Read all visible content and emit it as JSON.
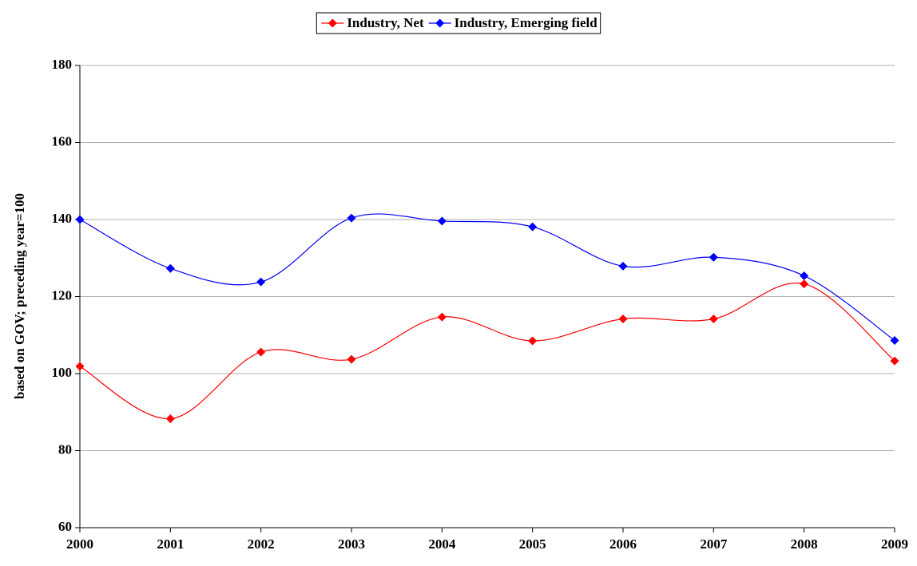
{
  "chart_data": {
    "type": "line",
    "y_label": "based on GOV; preceding year=100",
    "x": [
      2000,
      2001,
      2002,
      2003,
      2004,
      2005,
      2006,
      2007,
      2008,
      2009
    ],
    "xlim": [
      2000,
      2009
    ],
    "xticks": [
      2000,
      2001,
      2002,
      2003,
      2004,
      2005,
      2006,
      2007,
      2008,
      2009
    ],
    "ylim": [
      60,
      180
    ],
    "yticks": [
      60,
      80,
      100,
      120,
      140,
      160,
      180
    ],
    "grid": true,
    "legend": "top",
    "series": [
      {
        "name": "Industry, Net",
        "color": "#ff0000",
        "values": [
          101.9,
          88.3,
          105.6,
          103.7,
          114.7,
          108.5,
          114.2,
          114.2,
          123.3,
          103.3
        ]
      },
      {
        "name": "Industry, Emerging field",
        "color": "#0000ff",
        "values": [
          140,
          127.3,
          123.8,
          140.4,
          139.6,
          138.1,
          127.9,
          130.2,
          125.4,
          108.6
        ]
      }
    ]
  }
}
